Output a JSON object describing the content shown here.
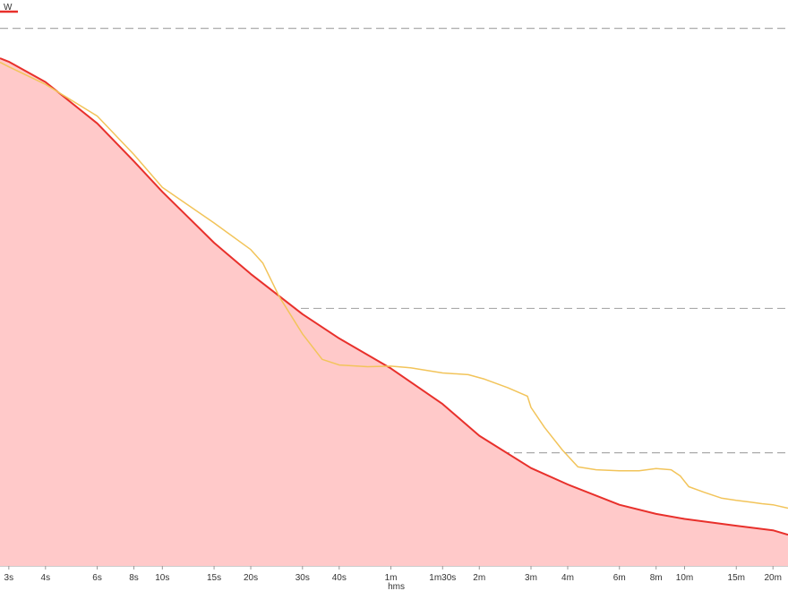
{
  "chart_data": {
    "type": "line",
    "title": "",
    "xlabel": "hms",
    "ylabel": "",
    "x_scale": "log",
    "x_unit": "seconds",
    "xlim": [
      2.8,
      1350
    ],
    "ylim": [
      0,
      1
    ],
    "grid": {
      "horizontal_dashed": true,
      "vertical": false
    },
    "legend": {
      "position": "top-left",
      "entries": [
        {
          "label": "W",
          "color": "#e8302b"
        }
      ]
    },
    "reference_lines": [
      0.95,
      0.455,
      0.2
    ],
    "x_ticks": [
      {
        "value": 3,
        "label": "3s"
      },
      {
        "value": 4,
        "label": "4s"
      },
      {
        "value": 6,
        "label": "6s"
      },
      {
        "value": 8,
        "label": "8s"
      },
      {
        "value": 10,
        "label": "10s"
      },
      {
        "value": 15,
        "label": "15s"
      },
      {
        "value": 20,
        "label": "20s"
      },
      {
        "value": 30,
        "label": "30s"
      },
      {
        "value": 40,
        "label": "40s"
      },
      {
        "value": 60,
        "label": "1m"
      },
      {
        "value": 90,
        "label": "1m30s"
      },
      {
        "value": 120,
        "label": "2m"
      },
      {
        "value": 180,
        "label": "3m"
      },
      {
        "value": 240,
        "label": "4m"
      },
      {
        "value": 360,
        "label": "6m"
      },
      {
        "value": 480,
        "label": "8m"
      },
      {
        "value": 600,
        "label": "10m"
      },
      {
        "value": 900,
        "label": "15m"
      },
      {
        "value": 1200,
        "label": "20m"
      }
    ],
    "series": [
      {
        "name": "W",
        "color": "#e8302b",
        "fill": "#ffc9c9",
        "x": [
          2.8,
          3,
          4,
          6,
          8,
          10,
          15,
          20,
          30,
          40,
          60,
          90,
          120,
          180,
          240,
          360,
          480,
          600,
          900,
          1200,
          1350
        ],
        "y": [
          0.897,
          0.891,
          0.855,
          0.782,
          0.715,
          0.661,
          0.571,
          0.516,
          0.445,
          0.402,
          0.349,
          0.286,
          0.23,
          0.173,
          0.144,
          0.108,
          0.092,
          0.083,
          0.071,
          0.063,
          0.055
        ]
      },
      {
        "color": "#f2c45a",
        "x": [
          2.8,
          3,
          4,
          6,
          8,
          10,
          15,
          20,
          22,
          25,
          30,
          35,
          40,
          50,
          60,
          70,
          90,
          110,
          125,
          150,
          175,
          180,
          200,
          230,
          260,
          300,
          360,
          420,
          480,
          540,
          580,
          620,
          700,
          800,
          900,
          1000,
          1100,
          1200,
          1350
        ],
        "y": [
          0.89,
          0.882,
          0.851,
          0.795,
          0.727,
          0.669,
          0.606,
          0.559,
          0.535,
          0.476,
          0.41,
          0.365,
          0.355,
          0.352,
          0.353,
          0.35,
          0.341,
          0.338,
          0.33,
          0.315,
          0.3,
          0.28,
          0.245,
          0.205,
          0.175,
          0.17,
          0.168,
          0.168,
          0.172,
          0.17,
          0.159,
          0.14,
          0.13,
          0.12,
          0.116,
          0.113,
          0.11,
          0.108,
          0.102
        ]
      }
    ]
  }
}
